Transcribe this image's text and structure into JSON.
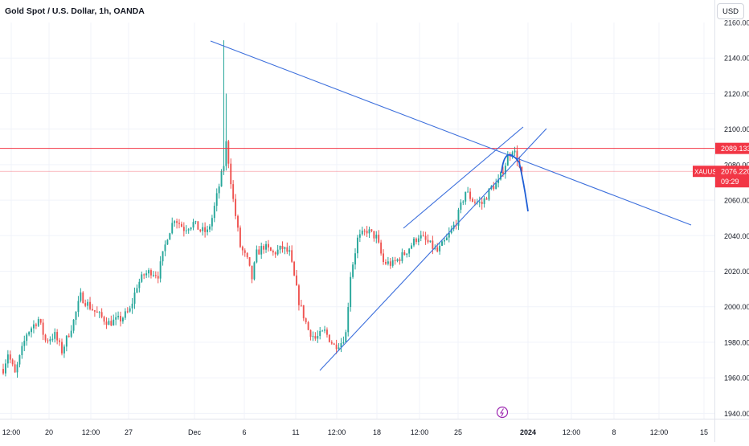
{
  "header": {
    "title": "Gold Spot / U.S. Dollar, 1h, OANDA",
    "currency": "USD"
  },
  "colors": {
    "up": "#26a69a",
    "down": "#ef5350",
    "trendline": "#3c6fdc",
    "projection": "#1f5fd6",
    "level_line": "#f23645",
    "price_tag": "#f23645",
    "grid": "#f0f3fa",
    "axis_text": "#131722",
    "event_icon": "#9c27b0"
  },
  "chart_data": {
    "type": "candlestick",
    "symbol": "XAUUSD",
    "timeframe": "1h",
    "ylim": [
      1937,
      2160
    ],
    "y_ticks": [
      1940,
      1960,
      1980,
      2000,
      2020,
      2040,
      2060,
      2080,
      2100,
      2120,
      2140
    ],
    "y_tick_labels": [
      "1940.000",
      "1960.000",
      "1980.000",
      "2000.000",
      "2020.000",
      "2040.000",
      "2060.000",
      "2080.000",
      "2100.000",
      "2120.000",
      "2140.000"
    ],
    "x_tick_labels": [
      "12:00",
      "20",
      "12:00",
      "27",
      "Dec",
      "6",
      "11",
      "12:00",
      "18",
      "12:00",
      "25",
      "2024",
      "12:00",
      "8",
      "12:00",
      "15"
    ],
    "x_tick_bold": [
      false,
      false,
      false,
      false,
      false,
      false,
      false,
      false,
      false,
      false,
      false,
      true,
      false,
      false,
      false,
      false
    ],
    "price_path": [
      {
        "t": 0,
        "p": 1965
      },
      {
        "t": 2,
        "p": 1974
      },
      {
        "t": 5,
        "p": 1962
      },
      {
        "t": 10,
        "p": 1985
      },
      {
        "t": 15,
        "p": 1993
      },
      {
        "t": 18,
        "p": 1981
      },
      {
        "t": 22,
        "p": 1984
      },
      {
        "t": 25,
        "p": 1975
      },
      {
        "t": 30,
        "p": 1992
      },
      {
        "t": 33,
        "p": 2006
      },
      {
        "t": 37,
        "p": 2000
      },
      {
        "t": 40,
        "p": 1996
      },
      {
        "t": 45,
        "p": 1991
      },
      {
        "t": 50,
        "p": 1993
      },
      {
        "t": 54,
        "p": 1998
      },
      {
        "t": 57,
        "p": 2012
      },
      {
        "t": 60,
        "p": 2018
      },
      {
        "t": 63,
        "p": 2020
      },
      {
        "t": 66,
        "p": 2018
      },
      {
        "t": 70,
        "p": 2040
      },
      {
        "t": 73,
        "p": 2050
      },
      {
        "t": 77,
        "p": 2044
      },
      {
        "t": 81,
        "p": 2047
      },
      {
        "t": 84,
        "p": 2043
      },
      {
        "t": 87,
        "p": 2042
      },
      {
        "t": 89,
        "p": 2050
      },
      {
        "t": 92,
        "p": 2068
      },
      {
        "t": 94,
        "p": 2080
      },
      {
        "t": 95,
        "p": 2092
      },
      {
        "t": 96,
        "p": 2082
      },
      {
        "t": 98,
        "p": 2060
      },
      {
        "t": 101,
        "p": 2034
      },
      {
        "t": 104,
        "p": 2026
      },
      {
        "t": 106,
        "p": 2016
      },
      {
        "t": 108,
        "p": 2030
      },
      {
        "t": 111,
        "p": 2034
      },
      {
        "t": 115,
        "p": 2030
      },
      {
        "t": 119,
        "p": 2033
      },
      {
        "t": 122,
        "p": 2030
      },
      {
        "t": 126,
        "p": 2003
      },
      {
        "t": 130,
        "p": 1987
      },
      {
        "t": 133,
        "p": 1982
      },
      {
        "t": 137,
        "p": 1986
      },
      {
        "t": 141,
        "p": 1978
      },
      {
        "t": 144,
        "p": 1980
      },
      {
        "t": 146,
        "p": 1985
      },
      {
        "t": 148,
        "p": 2018
      },
      {
        "t": 151,
        "p": 2038
      },
      {
        "t": 155,
        "p": 2043
      },
      {
        "t": 159,
        "p": 2039
      },
      {
        "t": 162,
        "p": 2025
      },
      {
        "t": 166,
        "p": 2024
      },
      {
        "t": 171,
        "p": 2030
      },
      {
        "t": 174,
        "p": 2035
      },
      {
        "t": 177,
        "p": 2040
      },
      {
        "t": 181,
        "p": 2036
      },
      {
        "t": 185,
        "p": 2031
      },
      {
        "t": 189,
        "p": 2038
      },
      {
        "t": 193,
        "p": 2048
      },
      {
        "t": 197,
        "p": 2065
      },
      {
        "t": 200,
        "p": 2060
      },
      {
        "t": 204,
        "p": 2058
      },
      {
        "t": 208,
        "p": 2067
      },
      {
        "t": 211,
        "p": 2070
      },
      {
        "t": 215,
        "p": 2084
      },
      {
        "t": 217,
        "p": 2089
      },
      {
        "t": 219,
        "p": 2084
      },
      {
        "t": 220,
        "p": 2078
      },
      {
        "t": 221,
        "p": 2076
      }
    ],
    "spike": {
      "t": 94,
      "high": 2150
    },
    "horizontal_levels": [
      {
        "price": 2089.133
      },
      {
        "price": 2076.22
      }
    ],
    "price_labels": [
      {
        "text": "2089.133"
      },
      {
        "symbol": "XAUUSD",
        "text": "2076.220",
        "countdown": "09:29"
      }
    ]
  }
}
